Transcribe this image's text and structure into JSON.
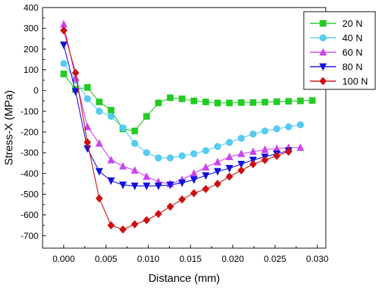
{
  "chart_data": {
    "type": "line",
    "xlabel": "Distance (mm)",
    "ylabel": "Stress-X (MPa)",
    "xlim": [
      -0.0025,
      0.031
    ],
    "ylim": [
      -760,
      400
    ],
    "x_ticks": [
      0.0,
      0.005,
      0.01,
      0.015,
      0.02,
      0.025,
      0.03
    ],
    "x_tick_labels": [
      "0.000",
      "0.005",
      "0.010",
      "0.015",
      "0.020",
      "0.025",
      "0.030"
    ],
    "y_ticks": [
      -700,
      -600,
      -500,
      -400,
      -300,
      -200,
      -100,
      0,
      100,
      200,
      300,
      400
    ],
    "y_tick_labels": [
      "-700",
      "-600",
      "-500",
      "-400",
      "-300",
      "-200",
      "-100",
      "0",
      "100",
      "200",
      "300",
      "400"
    ],
    "grid": false,
    "legend_position": "top-right",
    "series": [
      {
        "name": "20 N",
        "color": "#22cc22",
        "marker": "square",
        "x": [
          0.0,
          0.0014,
          0.0028,
          0.0042,
          0.0056,
          0.007,
          0.0084,
          0.0098,
          0.0112,
          0.0126,
          0.014,
          0.0154,
          0.0168,
          0.0182,
          0.0196,
          0.021,
          0.0224,
          0.0238,
          0.0252,
          0.0266,
          0.028,
          0.0294
        ],
        "y": [
          80,
          5,
          15,
          -55,
          -95,
          -185,
          -195,
          -125,
          -60,
          -35,
          -40,
          -50,
          -55,
          -60,
          -60,
          -58,
          -58,
          -56,
          -54,
          -52,
          -50,
          -48
        ]
      },
      {
        "name": "40 N",
        "color": "#55ccf0",
        "marker": "circle",
        "x": [
          0.0,
          0.0014,
          0.0028,
          0.0042,
          0.0056,
          0.007,
          0.0084,
          0.0098,
          0.0112,
          0.0126,
          0.014,
          0.0154,
          0.0168,
          0.0182,
          0.0196,
          0.021,
          0.0224,
          0.0238,
          0.0252,
          0.0266,
          0.028
        ],
        "y": [
          130,
          50,
          -40,
          -100,
          -125,
          -180,
          -255,
          -300,
          -325,
          -325,
          -315,
          -305,
          -290,
          -270,
          -250,
          -230,
          -210,
          -195,
          -185,
          -175,
          -165
        ]
      },
      {
        "name": "60 N",
        "color": "#cc44ee",
        "marker": "triangle-up",
        "x": [
          0.0,
          0.0014,
          0.0028,
          0.0042,
          0.0056,
          0.007,
          0.0084,
          0.0098,
          0.0112,
          0.0126,
          0.014,
          0.0154,
          0.0168,
          0.0182,
          0.0196,
          0.021,
          0.0224,
          0.0238,
          0.0252,
          0.0266,
          0.028
        ],
        "y": [
          320,
          60,
          -175,
          -255,
          -335,
          -365,
          -385,
          -415,
          -440,
          -450,
          -430,
          -400,
          -370,
          -345,
          -320,
          -305,
          -295,
          -285,
          -280,
          -275,
          -275
        ]
      },
      {
        "name": "80 N",
        "color": "#1111dd",
        "marker": "triangle-down",
        "x": [
          0.0,
          0.0014,
          0.0028,
          0.0042,
          0.0056,
          0.007,
          0.0084,
          0.0098,
          0.0112,
          0.0126,
          0.014,
          0.0154,
          0.0168,
          0.0182,
          0.0196,
          0.021,
          0.0224,
          0.0238,
          0.0252,
          0.0266
        ],
        "y": [
          220,
          -5,
          -280,
          -390,
          -435,
          -455,
          -460,
          -460,
          -460,
          -455,
          -445,
          -430,
          -410,
          -390,
          -375,
          -355,
          -335,
          -320,
          -305,
          -290
        ]
      },
      {
        "name": "100 N",
        "color": "#cc1111",
        "marker": "diamond",
        "x": [
          0.0,
          0.0014,
          0.0028,
          0.0042,
          0.0056,
          0.007,
          0.0084,
          0.0098,
          0.0112,
          0.0126,
          0.014,
          0.0154,
          0.0168,
          0.0182,
          0.0196,
          0.021,
          0.0224,
          0.0238,
          0.0252,
          0.0266
        ],
        "y": [
          290,
          85,
          -250,
          -520,
          -650,
          -670,
          -645,
          -625,
          -595,
          -560,
          -525,
          -495,
          -475,
          -450,
          -415,
          -385,
          -355,
          -335,
          -315,
          -295
        ]
      }
    ]
  }
}
